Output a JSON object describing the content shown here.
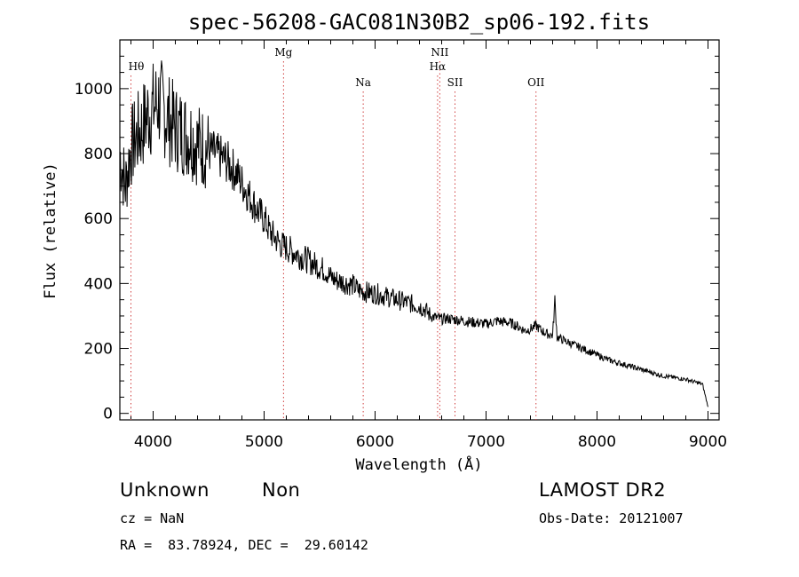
{
  "chart_data": {
    "type": "line",
    "title": "spec-56208-GAC081N30B2_sp06-192.fits",
    "xlabel": "Wavelength (Å)",
    "ylabel": "Flux (relative)",
    "xlim": [
      3700,
      9100
    ],
    "ylim": [
      -20,
      1150
    ],
    "x_ticks": [
      4000,
      5000,
      6000,
      7000,
      8000,
      9000
    ],
    "y_ticks": [
      0,
      200,
      400,
      600,
      800,
      1000
    ],
    "grid": false,
    "series": [
      {
        "x": [
          3700,
          3750,
          3800,
          3850,
          3900,
          3950,
          4000,
          4050,
          4100,
          4150,
          4200,
          4250,
          4300,
          4350,
          4400,
          4450,
          4500,
          4550,
          4600,
          4650,
          4700,
          4750,
          4800,
          4850,
          4900,
          4950,
          5000,
          5050,
          5100,
          5150,
          5200,
          5250,
          5300,
          5350,
          5400,
          5450,
          5500,
          5550,
          5600,
          5650,
          5700,
          5750,
          5800,
          5850,
          5900,
          5950,
          6000,
          6050,
          6100,
          6150,
          6200,
          6250,
          6300,
          6350,
          6400,
          6450,
          6500,
          6550,
          6600,
          6650,
          6700,
          6750,
          6800,
          6850,
          6900,
          6950,
          7000,
          7050,
          7100,
          7150,
          7200,
          7250,
          7300,
          7350,
          7400,
          7450,
          7500,
          7550,
          7600,
          7620,
          7640,
          7700,
          7800,
          7900,
          8000,
          8100,
          8200,
          8300,
          8400,
          8500,
          8600,
          8700,
          8800,
          8900,
          8950,
          9000
        ],
        "y": [
          800,
          700,
          820,
          850,
          880,
          920,
          940,
          960,
          930,
          900,
          880,
          870,
          860,
          850,
          830,
          820,
          810,
          800,
          790,
          780,
          760,
          740,
          710,
          680,
          650,
          620,
          600,
          560,
          540,
          520,
          510,
          500,
          490,
          480,
          470,
          460,
          450,
          440,
          420,
          410,
          405,
          400,
          395,
          380,
          375,
          372,
          370,
          365,
          360,
          355,
          350,
          345,
          340,
          335,
          330,
          320,
          300,
          295,
          290,
          292,
          290,
          288,
          285,
          282,
          280,
          278,
          275,
          280,
          285,
          282,
          280,
          275,
          265,
          255,
          260,
          270,
          255,
          245,
          240,
          350,
          235,
          225,
          210,
          195,
          180,
          165,
          155,
          145,
          135,
          125,
          115,
          110,
          105,
          95,
          90,
          20
        ]
      }
    ],
    "line_markers": [
      {
        "label": "Hθ",
        "x": 3800,
        "row": 1
      },
      {
        "label": "Mg",
        "x": 5175,
        "row": 0
      },
      {
        "label": "Na",
        "x": 5893,
        "row": 2
      },
      {
        "label": "NII",
        "x": 6583,
        "row": 0
      },
      {
        "label": "Hα",
        "x": 6563,
        "row": 1
      },
      {
        "label": "SII",
        "x": 6720,
        "row": 2
      },
      {
        "label": "OII",
        "x": 7450,
        "row": 2
      }
    ]
  },
  "info": {
    "class_text": "Unknown",
    "subclass_text": "Non",
    "survey_text": "LAMOST DR2",
    "cz_text": "cz = NaN",
    "obs_date_text": "Obs-Date: 20121007",
    "radec_text": "RA =  83.78924, DEC =  29.60142"
  }
}
